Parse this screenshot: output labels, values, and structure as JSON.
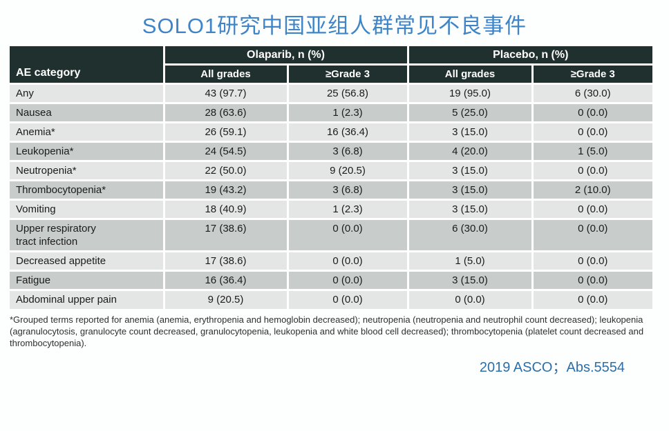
{
  "title": "SOLO1研究中国亚组人群常见不良事件",
  "table": {
    "corner_header": "AE category",
    "groups": [
      {
        "label": "Olaparib, n (%)"
      },
      {
        "label": "Placebo, n (%)"
      }
    ],
    "subheaders": [
      "All grades",
      "≥Grade 3",
      "All grades",
      "≥Grade 3"
    ],
    "rows": [
      {
        "category": "Any",
        "values": [
          "43 (97.7)",
          "25 (56.8)",
          "19 (95.0)",
          "6 (30.0)"
        ]
      },
      {
        "category": "Nausea",
        "values": [
          "28 (63.6)",
          "1 (2.3)",
          "5 (25.0)",
          "0 (0.0)"
        ]
      },
      {
        "category": "Anemia*",
        "values": [
          "26 (59.1)",
          "16 (36.4)",
          "3 (15.0)",
          "0 (0.0)"
        ]
      },
      {
        "category": "Leukopenia*",
        "values": [
          "24 (54.5)",
          "3 (6.8)",
          "4 (20.0)",
          "1 (5.0)"
        ]
      },
      {
        "category": "Neutropenia*",
        "values": [
          "22 (50.0)",
          "9 (20.5)",
          "3 (15.0)",
          "0 (0.0)"
        ]
      },
      {
        "category": "Thrombocytopenia*",
        "values": [
          "19 (43.2)",
          "3 (6.8)",
          "3 (15.0)",
          "2 (10.0)"
        ]
      },
      {
        "category": "Vomiting",
        "values": [
          "18 (40.9)",
          "1 (2.3)",
          "3 (15.0)",
          "0 (0.0)"
        ]
      },
      {
        "category": "Upper respiratory\ntract infection",
        "values": [
          "17 (38.6)",
          "0 (0.0)",
          "6 (30.0)",
          "0 (0.0)"
        ]
      },
      {
        "category": "Decreased appetite",
        "values": [
          "17 (38.6)",
          "0 (0.0)",
          "1 (5.0)",
          "0 (0.0)"
        ]
      },
      {
        "category": "Fatigue",
        "values": [
          "16 (36.4)",
          "0 (0.0)",
          "3 (15.0)",
          "0 (0.0)"
        ]
      },
      {
        "category": "Abdominal upper pain",
        "values": [
          "9 (20.5)",
          "0 (0.0)",
          "0 (0.0)",
          "0 (0.0)"
        ]
      }
    ]
  },
  "footnote": "*Grouped terms reported for anemia (anemia, erythropenia and hemoglobin decreased); neutropenia (neutropenia and neutrophil count decreased); leukopenia (agranulocytosis, granulocyte count decreased, granulocytopenia, leukopenia and white blood cell decreased); thrombocytopenia (platelet count decreased and thrombocytopenia).",
  "source": "2019 ASCO；Abs.5554",
  "colors": {
    "title_blue": "#3f84c6",
    "source_blue": "#2b6ea9",
    "header_dark": "#20302e",
    "row_light": "#e3e6e5",
    "row_dark": "#c8cdcc"
  }
}
